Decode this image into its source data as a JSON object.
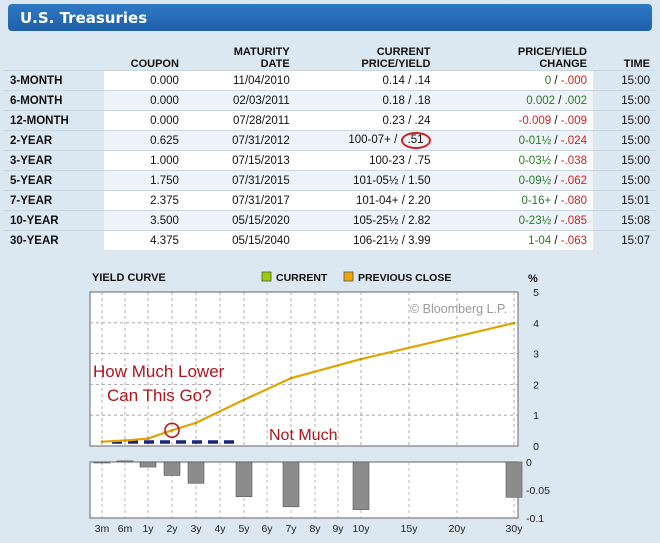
{
  "header": {
    "title": "U.S. Treasuries"
  },
  "table": {
    "columns": [
      "",
      "COUPON",
      "MATURITY DATE",
      "CURRENT PRICE/YIELD",
      "PRICE/YIELD CHANGE",
      "TIME"
    ],
    "column_lines": [
      [
        "",
        ""
      ],
      [
        "",
        "COUPON"
      ],
      [
        "MATURITY",
        "DATE"
      ],
      [
        "CURRENT",
        "PRICE/YIELD"
      ],
      [
        "PRICE/YIELD",
        "CHANGE"
      ],
      [
        "",
        "TIME"
      ]
    ],
    "rows": [
      {
        "name": "3-MONTH",
        "coupon": "0.000",
        "maturity": "11/04/2010",
        "price": "0.14",
        "yield": ".14",
        "price_chg": "0",
        "yield_chg": "-.000",
        "price_chg_class": "pos",
        "time": "15:00"
      },
      {
        "name": "6-MONTH",
        "coupon": "0.000",
        "maturity": "02/03/2011",
        "price": "0.18",
        "yield": ".18",
        "price_chg": "0.002",
        "yield_chg": ".002",
        "price_chg_class": "pos",
        "yield_chg_class": "pos",
        "time": "15:00"
      },
      {
        "name": "12-MONTH",
        "coupon": "0.000",
        "maturity": "07/28/2011",
        "price": "0.23",
        "yield": ".24",
        "price_chg": "-0.009",
        "yield_chg": "-.009",
        "price_chg_class": "neg",
        "time": "15:00"
      },
      {
        "name": "2-YEAR",
        "coupon": "0.625",
        "maturity": "07/31/2012",
        "price": "100-07+",
        "yield": ".51",
        "price_chg": "0-01½",
        "yield_chg": "-.024",
        "price_chg_class": "pos",
        "time": "15:00",
        "circled": true
      },
      {
        "name": "3-YEAR",
        "coupon": "1.000",
        "maturity": "07/15/2013",
        "price": "100-23",
        "yield": ".75",
        "price_chg": "0-03½",
        "yield_chg": "-.038",
        "price_chg_class": "pos",
        "time": "15:00"
      },
      {
        "name": "5-YEAR",
        "coupon": "1.750",
        "maturity": "07/31/2015",
        "price": "101-05½",
        "yield": "1.50",
        "price_chg": "0-09½",
        "yield_chg": "-.062",
        "price_chg_class": "pos",
        "time": "15:00"
      },
      {
        "name": "7-YEAR",
        "coupon": "2.375",
        "maturity": "07/31/2017",
        "price": "101-04+",
        "yield": "2.20",
        "price_chg": "0-16+",
        "yield_chg": "-.080",
        "price_chg_class": "pos",
        "time": "15:01"
      },
      {
        "name": "10-YEAR",
        "coupon": "3.500",
        "maturity": "05/15/2020",
        "price": "105-25½",
        "yield": "2.82",
        "price_chg": "0-23½",
        "yield_chg": "-.085",
        "price_chg_class": "pos",
        "time": "15:08"
      },
      {
        "name": "30-YEAR",
        "coupon": "4.375",
        "maturity": "05/15/2040",
        "price": "106-21½",
        "yield": "3.99",
        "price_chg": "1-04",
        "yield_chg": "-.063",
        "price_chg_class": "pos",
        "time": "15:07"
      }
    ]
  },
  "chart_data": {
    "type": "line",
    "title": "YIELD CURVE",
    "legend": [
      {
        "name": "CURRENT",
        "color": "#9acd00"
      },
      {
        "name": "PREVIOUS CLOSE",
        "color": "#f0a400"
      }
    ],
    "ylabel": "%",
    "watermark": "© Bloomberg L.P.",
    "x": [
      "3m",
      "6m",
      "1y",
      "2y",
      "3y",
      "4y",
      "5y",
      "6y",
      "7y",
      "8y",
      "9y",
      "10y",
      "15y",
      "20y",
      "30y"
    ],
    "series": [
      {
        "name": "CURRENT",
        "x": [
          "3m",
          "6m",
          "1y",
          "2y",
          "3y",
          "5y",
          "7y",
          "10y",
          "30y"
        ],
        "values": [
          0.14,
          0.18,
          0.24,
          0.51,
          0.75,
          1.5,
          2.2,
          2.82,
          3.99
        ]
      }
    ],
    "ylim": [
      0,
      5
    ],
    "yticks": [
      0,
      1,
      2,
      3,
      4,
      5
    ],
    "change_ylim": [
      -0.1,
      0
    ],
    "change_yticks": [
      "0",
      "-0.05",
      "-0.1"
    ],
    "change_values": {
      "3m": -0.0,
      "6m": 0.002,
      "1y": -0.009,
      "2y": -0.024,
      "3y": -0.038,
      "5y": -0.062,
      "7y": -0.08,
      "10y": -0.085,
      "30y": -0.063
    },
    "annotations": {
      "question": [
        "How Much Lower",
        "Can This Go?"
      ],
      "answer": "Not Much"
    }
  }
}
